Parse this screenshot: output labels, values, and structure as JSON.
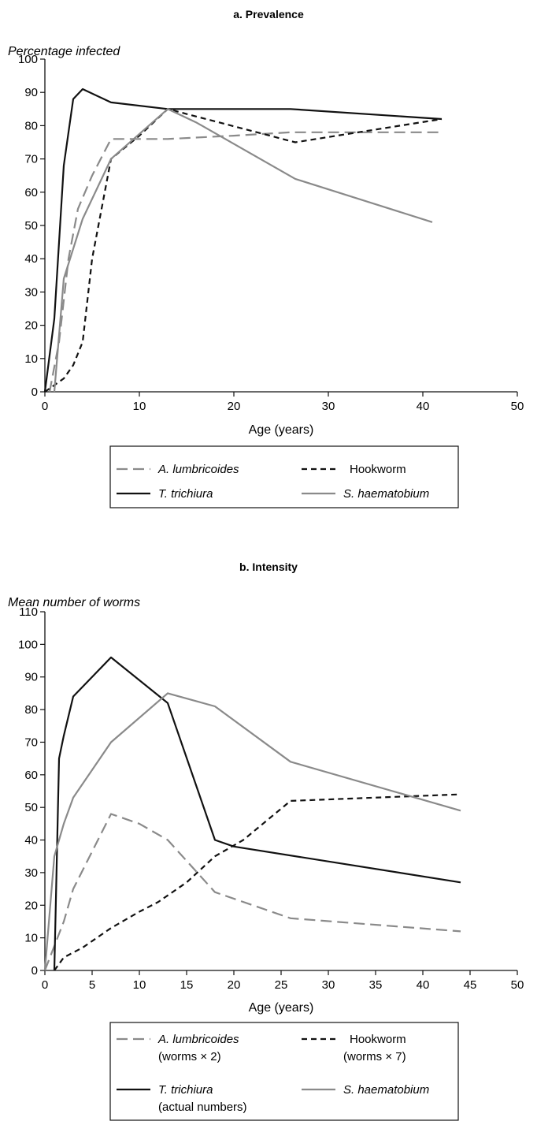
{
  "chart_data": [
    {
      "type": "line",
      "title": "a. Prevalence",
      "ylabel": "Percentage infected",
      "xlabel": "Age (years)",
      "xlim": [
        0,
        50
      ],
      "ylim": [
        0,
        100
      ],
      "xticks": [
        0,
        10,
        20,
        30,
        40,
        50
      ],
      "yticks": [
        0,
        10,
        20,
        30,
        40,
        50,
        60,
        70,
        80,
        90,
        100
      ],
      "grid": false,
      "legend_position": "bottom",
      "series": [
        {
          "name": "A. lumbricoides",
          "name_note": "",
          "color": "#8a8a8a",
          "style": "dashed",
          "x": [
            0.5,
            1.5,
            2.5,
            3.5,
            5,
            7,
            10,
            13,
            20,
            26,
            42
          ],
          "y": [
            0,
            15,
            40,
            55,
            65,
            76,
            76,
            76,
            77,
            78,
            78
          ]
        },
        {
          "name": "Hookworm",
          "name_note": "",
          "color": "#111111",
          "style": "dashed",
          "x": [
            0,
            2,
            3,
            4,
            5,
            7,
            10,
            13,
            26.5,
            42
          ],
          "y": [
            0,
            4,
            8,
            15,
            40,
            70,
            77,
            85,
            75,
            82
          ]
        },
        {
          "name": "T. trichiura",
          "name_note": "",
          "color": "#111111",
          "style": "solid",
          "x": [
            0,
            1,
            2,
            3,
            4,
            7,
            13,
            26,
            42
          ],
          "y": [
            0,
            22,
            68,
            88,
            91,
            87,
            85,
            85,
            82
          ]
        },
        {
          "name": "S. haematobium",
          "name_note": "",
          "color": "#8a8a8a",
          "style": "solid",
          "x": [
            1,
            2,
            4,
            7,
            13,
            16,
            26.5,
            41
          ],
          "y": [
            0,
            34,
            52,
            70,
            85,
            81,
            64,
            51
          ]
        }
      ]
    },
    {
      "type": "line",
      "title": "b. Intensity",
      "ylabel": "Mean number of worms",
      "xlabel": "Age (years)",
      "xlim": [
        0,
        50
      ],
      "ylim": [
        0,
        110
      ],
      "xticks": [
        0,
        5,
        10,
        15,
        20,
        25,
        30,
        35,
        40,
        45,
        50
      ],
      "yticks": [
        0,
        10,
        20,
        30,
        40,
        50,
        60,
        70,
        80,
        90,
        100,
        110
      ],
      "grid": false,
      "legend_position": "bottom",
      "series": [
        {
          "name": "A. lumbricoides",
          "name_note": "(worms × 2)",
          "color": "#8a8a8a",
          "style": "dashed",
          "x": [
            0,
            2,
            3,
            7,
            10,
            13,
            18,
            26,
            44
          ],
          "y": [
            0,
            15,
            25,
            48,
            45,
            40,
            24,
            16,
            12
          ]
        },
        {
          "name": "Hookworm",
          "name_note": "(worms × 7)",
          "color": "#111111",
          "style": "dashed",
          "x": [
            1,
            2,
            4,
            7,
            10,
            12,
            15,
            18,
            21,
            26,
            44
          ],
          "y": [
            0,
            4,
            7,
            13,
            18,
            21,
            27,
            35,
            40,
            52,
            54
          ]
        },
        {
          "name": "T. trichiura",
          "name_note": "(actual numbers)",
          "color": "#111111",
          "style": "solid",
          "x": [
            1,
            1.5,
            2,
            3,
            7,
            13,
            18,
            20,
            44
          ],
          "y": [
            0,
            65,
            72,
            84,
            96,
            82,
            40,
            38,
            27
          ]
        },
        {
          "name": "S. haematobium",
          "name_note": "",
          "color": "#8a8a8a",
          "style": "solid",
          "x": [
            0,
            1,
            2,
            3,
            7,
            13,
            18,
            26,
            44
          ],
          "y": [
            0,
            35,
            45,
            53,
            70,
            85,
            81,
            64,
            49
          ]
        }
      ]
    }
  ]
}
